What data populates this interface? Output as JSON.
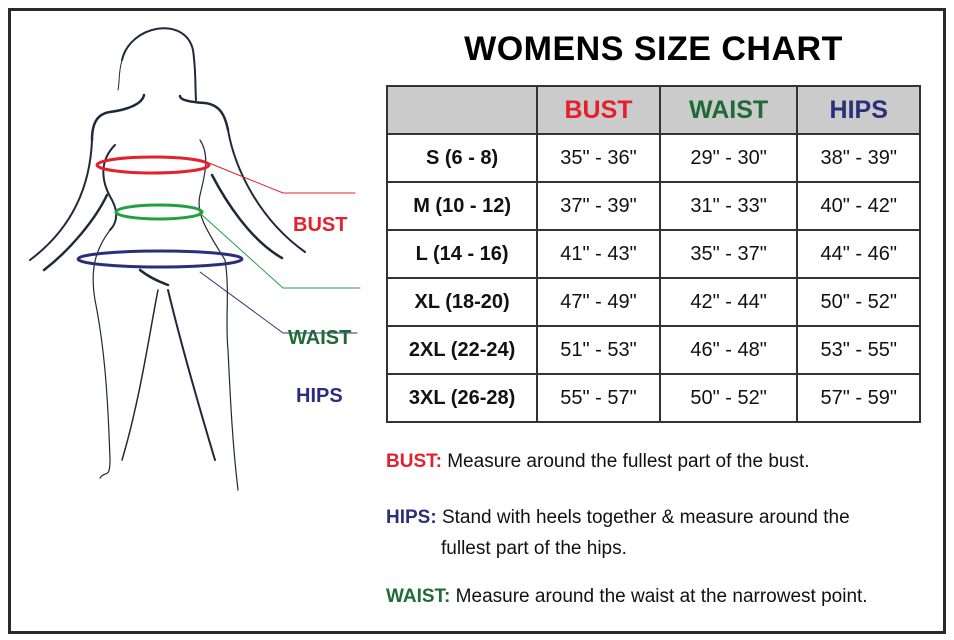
{
  "title": "WOMENS SIZE CHART",
  "colors": {
    "bust": "#e5202e",
    "waist": "#1f6b35",
    "hips": "#2b2f7a",
    "header_bg": "#cbcbcb"
  },
  "figure": {
    "labels": {
      "bust": "BUST",
      "waist": "WAIST",
      "hips": "HIPS"
    }
  },
  "table": {
    "headers": [
      "",
      "BUST",
      "WAIST",
      "HIPS"
    ],
    "rows": [
      {
        "size": "S (6 - 8)",
        "bust": "35\" - 36\"",
        "waist": "29\" - 30\"",
        "hips": "38\" - 39\""
      },
      {
        "size": "M (10 - 12)",
        "bust": "37\" - 39\"",
        "waist": "31\" - 33\"",
        "hips": "40\" - 42\""
      },
      {
        "size": "L (14 - 16)",
        "bust": "41\" - 43\"",
        "waist": "35\" - 37\"",
        "hips": "44\" - 46\""
      },
      {
        "size": "XL (18-20)",
        "bust": "47\" - 49\"",
        "waist": "42\" - 44\"",
        "hips": "50\" - 52\""
      },
      {
        "size": "2XL (22-24)",
        "bust": "51\" - 53\"",
        "waist": "46\" - 48\"",
        "hips": "53\" - 55\""
      },
      {
        "size": "3XL (26-28)",
        "bust": "55\" - 57\"",
        "waist": "50\" - 52\"",
        "hips": "57\" - 59\""
      }
    ]
  },
  "notes": {
    "bust": {
      "label": "BUST:",
      "text": "Measure around the fullest part of the bust."
    },
    "hips": {
      "label": "HIPS:",
      "text": "Stand with heels together & measure around the",
      "text2": "fullest part of the hips."
    },
    "waist": {
      "label": "WAIST:",
      "text": "Measure around the waist at the narrowest point."
    }
  }
}
